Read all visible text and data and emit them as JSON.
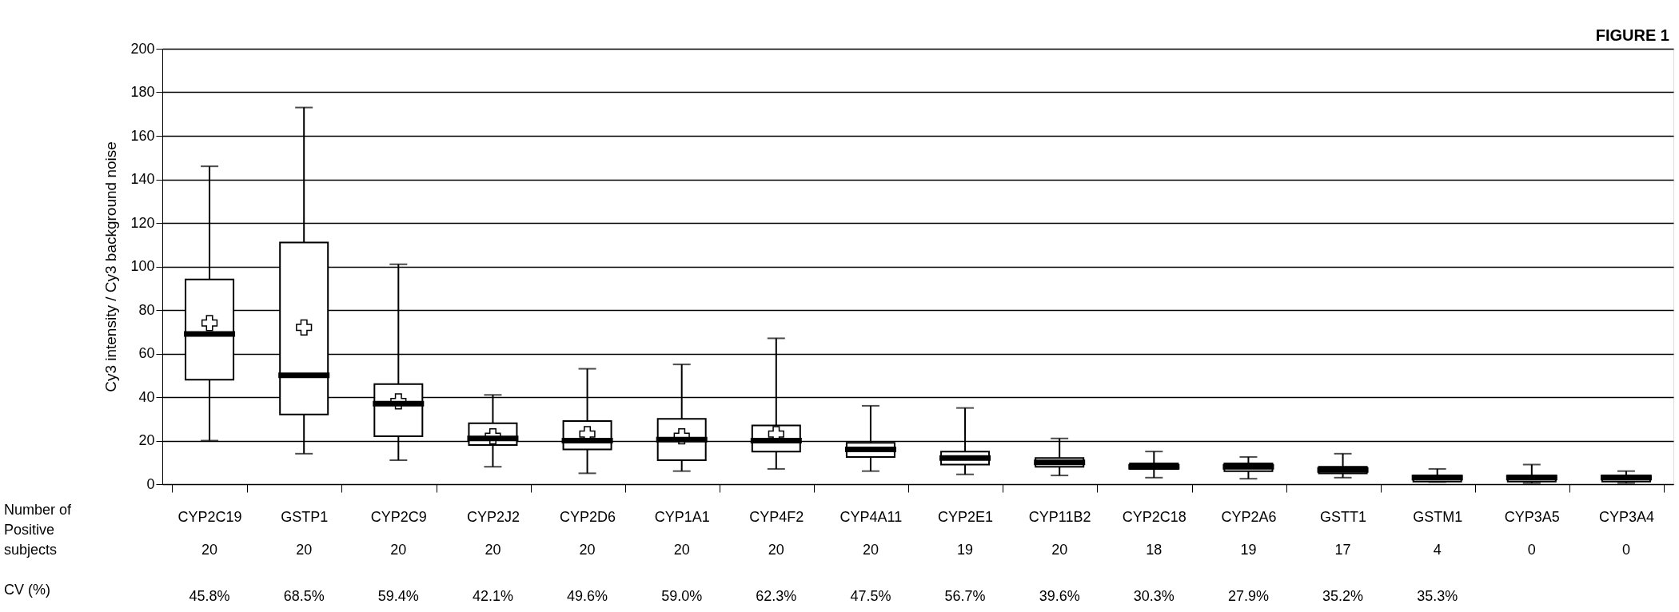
{
  "chart_data": {
    "type": "box",
    "title": "FIGURE 1",
    "ylabel": "Cy3 intensity / Cy3 background noise",
    "categories": [
      "CYP2C19",
      "GSTP1",
      "CYP2C9",
      "CYP2J2",
      "CYP2D6",
      "CYP1A1",
      "CYP4F2",
      "CYP4A11",
      "CYP2E1",
      "CYP11B2",
      "CYP2C18",
      "CYP2A6",
      "GSTT1",
      "GSTM1",
      "CYP3A5",
      "CYP3A4"
    ],
    "boxes": [
      {
        "low": 20,
        "q1": 48,
        "median": 69,
        "q3": 94,
        "high": 146,
        "mean": 74
      },
      {
        "low": 14,
        "q1": 32,
        "median": 50,
        "q3": 111,
        "high": 173,
        "mean": 72
      },
      {
        "low": 11,
        "q1": 22,
        "median": 37,
        "q3": 46,
        "high": 101,
        "mean": 38
      },
      {
        "low": 8,
        "q1": 18,
        "median": 21,
        "q3": 28,
        "high": 41,
        "mean": 22
      },
      {
        "low": 5,
        "q1": 16,
        "median": 20,
        "q3": 29,
        "high": 53,
        "mean": 23
      },
      {
        "low": 6,
        "q1": 11,
        "median": 20.5,
        "q3": 30,
        "high": 55,
        "mean": 22
      },
      {
        "low": 7,
        "q1": 15,
        "median": 20,
        "q3": 27,
        "high": 67,
        "mean": 23
      },
      {
        "low": 6,
        "q1": 12.5,
        "median": 16,
        "q3": 19,
        "high": 36
      },
      {
        "low": 4.5,
        "q1": 9,
        "median": 12,
        "q3": 15,
        "high": 35
      },
      {
        "low": 4,
        "q1": 8,
        "median": 10,
        "q3": 12,
        "high": 21
      },
      {
        "low": 3,
        "q1": 7,
        "median": 8,
        "q3": 9.5,
        "high": 15
      },
      {
        "low": 2.5,
        "q1": 6,
        "median": 8,
        "q3": 9.5,
        "high": 12.5
      },
      {
        "low": 3,
        "q1": 5,
        "median": 6.5,
        "q3": 8,
        "high": 14
      },
      {
        "low": 1,
        "q1": 1.2,
        "median": 3,
        "q3": 4,
        "high": 7
      },
      {
        "low": 0.5,
        "q1": 1.2,
        "median": 3,
        "q3": 4,
        "high": 9
      },
      {
        "low": 0.5,
        "q1": 1.2,
        "median": 3,
        "q3": 4,
        "high": 6
      }
    ],
    "ylim": [
      0,
      200
    ],
    "yticks": [
      0,
      20,
      40,
      60,
      80,
      100,
      120,
      140,
      160,
      180,
      200
    ],
    "grid": "y",
    "annotations": [
      "Number of\nPositive\nsubjects",
      "20",
      "20",
      "20",
      "20",
      "20",
      "20",
      "20",
      "20",
      "19",
      "20",
      "18",
      "19",
      "17",
      "4",
      "0",
      "0",
      "CV (%)",
      "45.8%",
      "68.5%",
      "59.4%",
      "42.1%",
      "49.6%",
      "59.0%",
      "62.3%",
      "47.5%",
      "56.7%",
      "39.6%",
      "30.3%",
      "27.9%",
      "35.2%",
      "35.3%"
    ]
  }
}
